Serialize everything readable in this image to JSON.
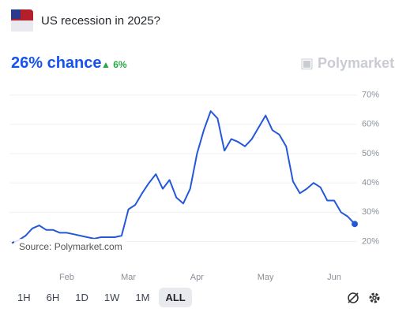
{
  "header": {
    "title": "US recession in 2025?",
    "headline": "26% chance",
    "change": "6%",
    "brand": "Polymarket"
  },
  "ranges": [
    "1H",
    "6H",
    "1D",
    "1W",
    "1M",
    "ALL"
  ],
  "selected_range": 5,
  "chart_data": {
    "type": "line",
    "annotation": "Source: Polymarket.com",
    "color": "#2458d8",
    "grid": true,
    "categories": [
      null,
      null,
      null,
      null,
      null,
      null,
      null,
      null,
      "Feb",
      null,
      null,
      null,
      null,
      null,
      null,
      null,
      null,
      "Mar",
      null,
      null,
      null,
      null,
      null,
      null,
      null,
      null,
      null,
      "Apr",
      null,
      null,
      null,
      null,
      null,
      null,
      null,
      null,
      null,
      "May",
      null,
      null,
      null,
      null,
      null,
      null,
      null,
      null,
      null,
      "Jun",
      null,
      null,
      null
    ],
    "values": [
      19.5,
      20.5,
      22,
      24.5,
      25.5,
      24,
      24,
      23,
      23,
      22.5,
      22,
      21.5,
      21,
      21.5,
      21.5,
      21.5,
      22,
      31,
      32.5,
      36.5,
      40,
      43,
      38,
      41,
      35,
      33,
      38,
      50,
      58,
      64.5,
      62,
      51,
      55,
      54,
      52.5,
      55,
      59,
      63,
      58,
      56.5,
      52.5,
      40.5,
      36.5,
      38,
      40,
      38.5,
      34,
      34,
      30,
      28.5,
      26
    ],
    "ylim": [
      11,
      71.5
    ],
    "yticks": [
      {
        "value": 20,
        "label": "20%"
      },
      {
        "value": 30,
        "label": "30%"
      },
      {
        "value": 40,
        "label": "40%"
      },
      {
        "value": 50,
        "label": "50%"
      },
      {
        "value": 60,
        "label": "60%"
      },
      {
        "value": 70,
        "label": "70%"
      }
    ]
  }
}
